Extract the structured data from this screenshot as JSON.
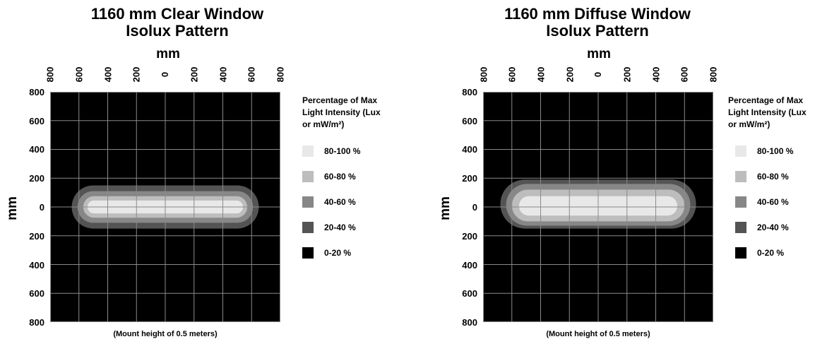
{
  "legend": {
    "title_lines": [
      "Percentage of Max",
      "Light Intensity (Lux",
      "or mW/m²)"
    ],
    "items": [
      {
        "label": "80-100 %",
        "color": "#e8e8e8"
      },
      {
        "label": "60-80 %",
        "color": "#bdbdbd"
      },
      {
        "label": "40-60 %",
        "color": "#878787"
      },
      {
        "label": "20-40 %",
        "color": "#545454"
      },
      {
        "label": "0-20 %",
        "color": "#000000"
      }
    ]
  },
  "chart_data": [
    {
      "type": "heatmap",
      "title_lines": [
        "1160 mm Clear Window",
        "Isolux Pattern"
      ],
      "xlabel": "mm",
      "ylabel": "mm",
      "x_ticks": [
        "800",
        "600",
        "400",
        "200",
        "0",
        "200",
        "400",
        "600",
        "800"
      ],
      "y_ticks": [
        "800",
        "600",
        "400",
        "200",
        "0",
        "200",
        "400",
        "600",
        "800"
      ],
      "xlim": [
        -800,
        800
      ],
      "ylim": [
        -800,
        800
      ],
      "grid": true,
      "footnote": "(Mount height of 0.5 meters)",
      "contours": [
        {
          "level": "20-40 %",
          "x_range": [
            -650,
            650
          ],
          "y_range": [
            -150,
            150
          ]
        },
        {
          "level": "40-60 %",
          "x_range": [
            -610,
            610
          ],
          "y_range": [
            -110,
            110
          ]
        },
        {
          "level": "60-80 %",
          "x_range": [
            -570,
            570
          ],
          "y_range": [
            -75,
            75
          ]
        },
        {
          "level": "80-100 %",
          "x_range": [
            -540,
            540
          ],
          "y_range": [
            -45,
            45
          ]
        }
      ]
    },
    {
      "type": "heatmap",
      "title_lines": [
        "1160 mm Diffuse Window",
        "Isolux Pattern"
      ],
      "xlabel": "mm",
      "ylabel": "mm",
      "x_ticks": [
        "800",
        "600",
        "400",
        "200",
        "0",
        "200",
        "400",
        "600",
        "800"
      ],
      "y_ticks": [
        "800",
        "600",
        "400",
        "200",
        "0",
        "200",
        "400",
        "600",
        "800"
      ],
      "xlim": [
        -800,
        800
      ],
      "ylim": [
        -800,
        800
      ],
      "grid": true,
      "footnote": "(Mount height of 0.5 meters)",
      "contours": [
        {
          "level": "20-40 %",
          "x_range": [
            -680,
            680
          ],
          "y_range": [
            -150,
            190
          ]
        },
        {
          "level": "40-60 %",
          "x_range": [
            -640,
            640
          ],
          "y_range": [
            -130,
            160
          ]
        },
        {
          "level": "60-80 %",
          "x_range": [
            -600,
            600
          ],
          "y_range": [
            -100,
            120
          ]
        },
        {
          "level": "80-100 %",
          "x_range": [
            -550,
            550
          ],
          "y_range": [
            -60,
            75
          ]
        }
      ]
    }
  ]
}
